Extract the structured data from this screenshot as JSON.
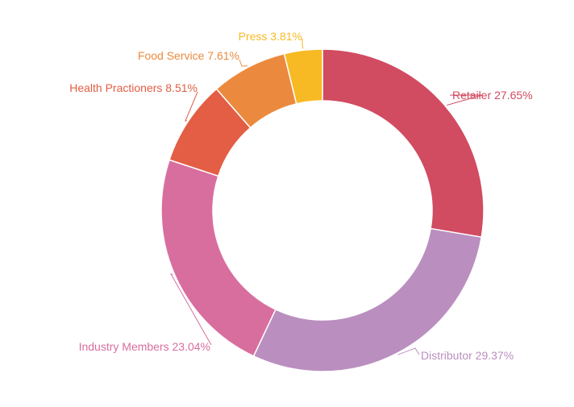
{
  "chart_data": {
    "type": "pie",
    "variant": "donut",
    "title": "",
    "slices": [
      {
        "label": "Retailer",
        "value": 27.65,
        "color": "#D14B61"
      },
      {
        "label": "Distributor",
        "value": 29.37,
        "color": "#BA8FBF"
      },
      {
        "label": "Industry Members",
        "value": 23.04,
        "color": "#D86E9E"
      },
      {
        "label": "Health Practioners",
        "value": 8.51,
        "color": "#E35E44"
      },
      {
        "label": "Food Service",
        "value": 7.61,
        "color": "#EB8A3E"
      },
      {
        "label": "Press",
        "value": 3.81,
        "color": "#F7B924"
      }
    ],
    "label_texts": [
      "Retailer 27.65%",
      "Distributor 29.37%",
      "Industry Members 23.04%",
      "Health Practioners 8.51%",
      "Food Service 7.61%",
      "Press 3.81%"
    ]
  }
}
